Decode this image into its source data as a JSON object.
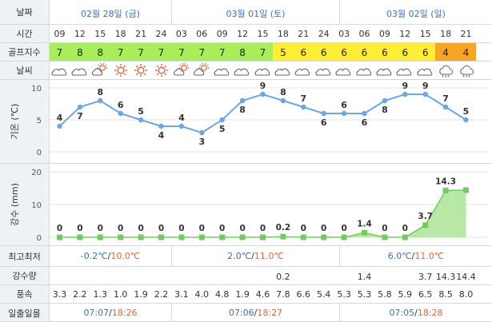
{
  "labels": {
    "date": "날짜",
    "time": "시간",
    "golf_index": "골프지수",
    "weather": "날씨",
    "temp_axis": "기온 (℃)",
    "rain_axis": "강수 (mm)",
    "minmax": "최고최저",
    "precip": "강수량",
    "wind": "풍속",
    "sunrise_sunset": "일출일몰"
  },
  "days": [
    {
      "label": "02월 28일 (금)",
      "minmax_low": "-0.2℃",
      "minmax_sep": "/",
      "minmax_high": "10.0℃",
      "sun_rise": "07:07",
      "sun_sep": "/",
      "sun_set": "18:26"
    },
    {
      "label": "03월 01일 (토)",
      "minmax_low": "2.0℃",
      "minmax_sep": "/",
      "minmax_high": "11.0℃",
      "sun_rise": "07:06",
      "sun_sep": "/",
      "sun_set": "18:27"
    },
    {
      "label": "03월 02일 (일)",
      "minmax_low": "6.0℃",
      "minmax_sep": "/",
      "minmax_high": "11.0℃",
      "sun_rise": "07:05",
      "sun_sep": "/",
      "sun_set": "18:28"
    }
  ],
  "hours": [
    "09",
    "12",
    "15",
    "18",
    "21",
    "24",
    "03",
    "06",
    "09",
    "12",
    "15",
    "18",
    "21",
    "24",
    "03",
    "06",
    "09",
    "12",
    "15",
    "18",
    "21"
  ],
  "golf_index": [
    "7",
    "8",
    "8",
    "7",
    "7",
    "7",
    "7",
    "7",
    "7",
    "8",
    "7",
    "5",
    "6",
    "6",
    "6",
    "6",
    "6",
    "6",
    "6",
    "4",
    "4"
  ],
  "weather_icons": [
    "cloudy",
    "cloudy",
    "partly",
    "sunny",
    "sunny",
    "sunny",
    "partly",
    "partly",
    "cloudy",
    "cloudy",
    "cloudy",
    "cloudy",
    "cloudy",
    "cloudy",
    "cloudy",
    "cloudy",
    "cloudy",
    "cloudy",
    "cloudy",
    "rain",
    "rain"
  ],
  "precip": [
    "",
    "",
    "",
    "",
    "",
    "",
    "",
    "",
    "",
    "",
    "",
    "0.2",
    "",
    "",
    "",
    "1.4",
    "",
    "",
    "3.7",
    "14.3",
    "14.4"
  ],
  "wind": [
    "3.3",
    "2.2",
    "1.3",
    "1.0",
    "1.9",
    "2.2",
    "3.1",
    "4.0",
    "4.8",
    "1.9",
    "4.6",
    "7.8",
    "6.6",
    "5.4",
    "5.3",
    "5.3",
    "5.8",
    "5.9",
    "6.5",
    "8.5",
    "8.0"
  ],
  "colors": {
    "grid": "#d5d9de",
    "label_bg": "#eef1f5",
    "day_text": "#3f6fb5",
    "temp_line": "#6aa7e8",
    "rain_fill": "#b7e8a6",
    "rain_line": "#70cc60",
    "golf_green": "#a8ee5a",
    "golf_yellow": "#ffee33",
    "golf_orange": "#f5a623"
  },
  "chart_data": [
    {
      "type": "line",
      "title": "",
      "ylabel": "기온 (℃)",
      "x": [
        "09",
        "12",
        "15",
        "18",
        "21",
        "24",
        "03",
        "06",
        "09",
        "12",
        "15",
        "18",
        "21",
        "24",
        "03",
        "06",
        "09",
        "12",
        "15",
        "18",
        "21"
      ],
      "values": [
        4,
        7,
        8,
        6,
        5,
        4,
        4,
        3,
        5,
        8,
        9,
        8,
        7,
        6,
        6,
        6,
        8,
        9,
        9,
        7,
        5
      ],
      "data_labels": [
        "4",
        "7",
        "8",
        "6",
        "5",
        "4",
        "4",
        "3",
        "5",
        "8",
        "9",
        "8",
        "7",
        "6",
        "6",
        "6",
        "8",
        "9",
        "9",
        "7",
        "5"
      ],
      "ylim": [
        0,
        10
      ],
      "yticks": [
        "0",
        "5",
        "10"
      ]
    },
    {
      "type": "area",
      "title": "",
      "ylabel": "강수 (mm)",
      "x": [
        "09",
        "12",
        "15",
        "18",
        "21",
        "24",
        "03",
        "06",
        "09",
        "12",
        "15",
        "18",
        "21",
        "24",
        "03",
        "06",
        "09",
        "12",
        "15",
        "18",
        "21"
      ],
      "values": [
        0,
        0,
        0,
        0,
        0,
        0,
        0,
        0,
        0,
        0,
        0,
        0.2,
        0,
        0,
        0,
        1.4,
        0,
        0,
        3.7,
        14.3,
        14.4
      ],
      "data_labels": [
        "0",
        "0",
        "0",
        "0",
        "0",
        "0",
        "0",
        "0",
        "0",
        "0",
        "0",
        "0.2",
        "0",
        "0",
        "0",
        "1.4",
        "0",
        "0",
        "3.7",
        "14.3",
        ""
      ],
      "ylim": [
        0,
        20
      ],
      "yticks": [
        "0",
        "10",
        "20"
      ]
    }
  ]
}
